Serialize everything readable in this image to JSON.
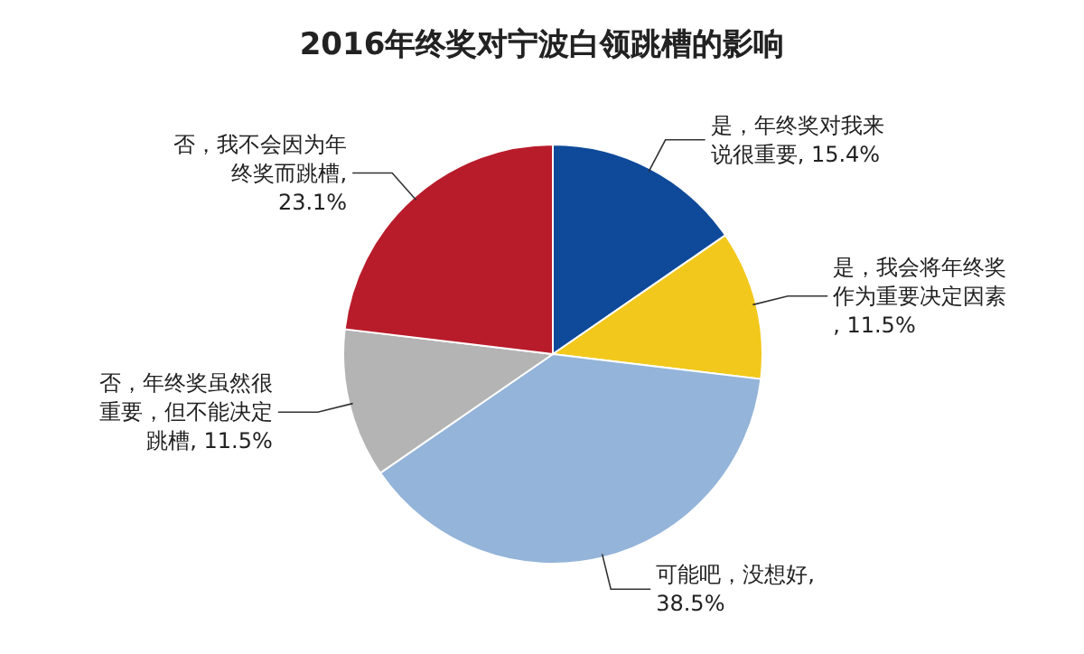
{
  "chart_data": {
    "type": "pie",
    "title": "2016年终奖对宁波白领跳槽的影响",
    "categories": [
      "是，年终奖对我来说很重要, 15.4%",
      "是，我会将年终奖作为重要决定因素, 11.5%",
      "可能吧，没想好, 38.5%",
      "否，年终奖虽然很重要，但不能决定跳槽, 11.5%",
      "否，我不会因为年终奖而跳槽, 23.1%"
    ],
    "values": [
      15.4,
      11.5,
      38.5,
      11.5,
      23.1
    ],
    "colors": [
      "#0f4a9a",
      "#f2c81c",
      "#94b4d9",
      "#b4b4b4",
      "#b81c2a"
    ]
  }
}
